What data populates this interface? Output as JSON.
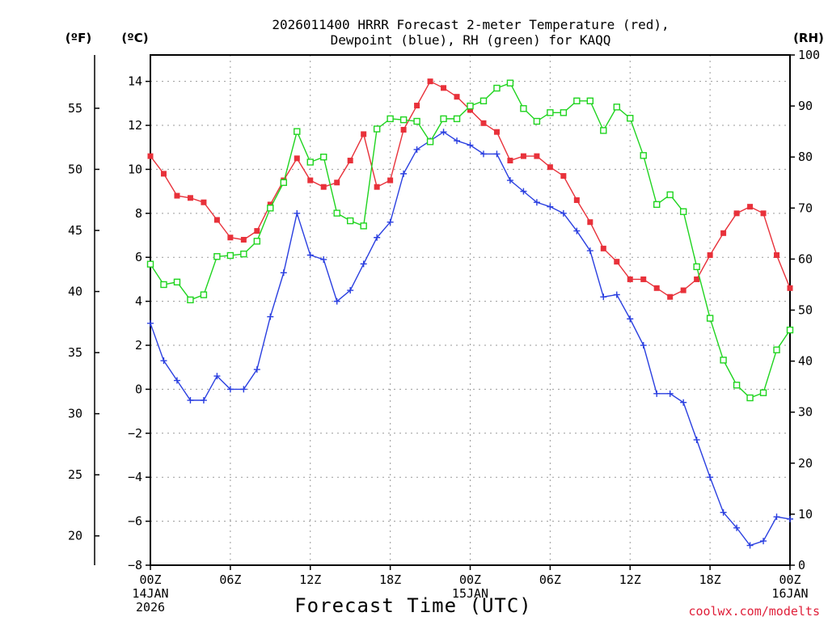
{
  "chart_data": {
    "type": "line",
    "title_line1": "2026011400 HRRR Forecast 2-meter Temperature (red),",
    "title_line2": "Dewpoint (blue), RH (green) for KAQQ",
    "xlabel": "Forecast Time (UTC)",
    "credit": "coolwx.com/modelts",
    "unit_f": "(ºF)",
    "unit_c": "(ºC)",
    "unit_rh": "(RH)",
    "hours": [
      0,
      1,
      2,
      3,
      4,
      5,
      6,
      7,
      8,
      9,
      10,
      11,
      12,
      13,
      14,
      15,
      16,
      17,
      18,
      19,
      20,
      21,
      22,
      23,
      24,
      25,
      26,
      27,
      28,
      29,
      30,
      31,
      32,
      33,
      34,
      35,
      36,
      37,
      38,
      39,
      40,
      41,
      42,
      43,
      44,
      45,
      46,
      47,
      48
    ],
    "x_ticks": [
      {
        "hour": 0,
        "lines": [
          "00Z",
          "14JAN",
          "2026"
        ]
      },
      {
        "hour": 6,
        "lines": [
          "06Z"
        ]
      },
      {
        "hour": 12,
        "lines": [
          "12Z"
        ]
      },
      {
        "hour": 18,
        "lines": [
          "18Z"
        ]
      },
      {
        "hour": 24,
        "lines": [
          "00Z",
          "15JAN"
        ]
      },
      {
        "hour": 30,
        "lines": [
          "06Z"
        ]
      },
      {
        "hour": 36,
        "lines": [
          "12Z"
        ]
      },
      {
        "hour": 42,
        "lines": [
          "18Z"
        ]
      },
      {
        "hour": 48,
        "lines": [
          "00Z",
          "16JAN"
        ]
      }
    ],
    "ylim_c": [
      -8,
      15.2
    ],
    "ylim_rh": [
      0,
      100
    ],
    "yticks_c": [
      -8,
      -6,
      -4,
      -2,
      0,
      2,
      4,
      6,
      8,
      10,
      12,
      14
    ],
    "yticks_f": [
      20,
      25,
      30,
      35,
      40,
      45,
      50,
      55
    ],
    "yticks_rh": [
      0,
      10,
      20,
      30,
      40,
      50,
      60,
      70,
      80,
      90,
      100
    ],
    "series": [
      {
        "name": "Temperature",
        "units": "°C",
        "color": "#e8313a",
        "marker": "filled-square",
        "axis": "c",
        "values": [
          10.6,
          9.8,
          8.8,
          8.7,
          8.5,
          7.7,
          6.9,
          6.8,
          7.2,
          8.4,
          9.5,
          10.5,
          9.5,
          9.2,
          9.4,
          10.4,
          11.6,
          9.2,
          9.5,
          11.8,
          12.9,
          14.0,
          13.7,
          13.3,
          12.7,
          12.1,
          11.7,
          10.4,
          10.6,
          10.6,
          10.1,
          9.7,
          8.6,
          7.6,
          6.4,
          5.8,
          5.0,
          5.0,
          4.6,
          4.2,
          4.5,
          5.0,
          6.1,
          7.1,
          8.0,
          8.3,
          8.0,
          6.1,
          4.6
        ]
      },
      {
        "name": "Dewpoint",
        "units": "°C",
        "color": "#2a3fe0",
        "marker": "plus",
        "axis": "c",
        "values": [
          3.0,
          1.3,
          0.4,
          -0.5,
          -0.5,
          0.6,
          0.0,
          0.0,
          0.9,
          3.3,
          5.3,
          8.0,
          6.1,
          5.9,
          4.0,
          4.5,
          5.7,
          6.9,
          7.6,
          9.8,
          10.9,
          11.3,
          11.7,
          11.3,
          11.1,
          10.7,
          10.7,
          9.5,
          9.0,
          8.5,
          8.3,
          8.0,
          7.2,
          6.3,
          4.2,
          4.3,
          3.2,
          2.0,
          -0.2,
          -0.2,
          -0.6,
          -2.3,
          -4.0,
          -5.6,
          -6.3,
          -7.1,
          -6.9,
          -5.8,
          -5.9
        ]
      },
      {
        "name": "RH",
        "units": "%",
        "color": "#1fd41f",
        "marker": "open-square",
        "axis": "rh",
        "values": [
          59,
          55,
          55.5,
          52,
          53,
          60.5,
          60.7,
          61,
          63.5,
          70,
          75,
          85,
          79,
          80,
          69,
          67.5,
          66.5,
          85.5,
          87.5,
          87.3,
          87,
          83,
          87.5,
          87.5,
          90,
          91,
          93.5,
          94.5,
          89.5,
          87,
          88.7,
          88.7,
          91,
          91,
          85.2,
          89.8,
          87.6,
          80.3,
          70.7,
          72.6,
          69.3,
          58.5,
          48.4,
          40.2,
          35.3,
          32.8,
          33.8,
          42.2,
          46.1
        ]
      }
    ]
  }
}
